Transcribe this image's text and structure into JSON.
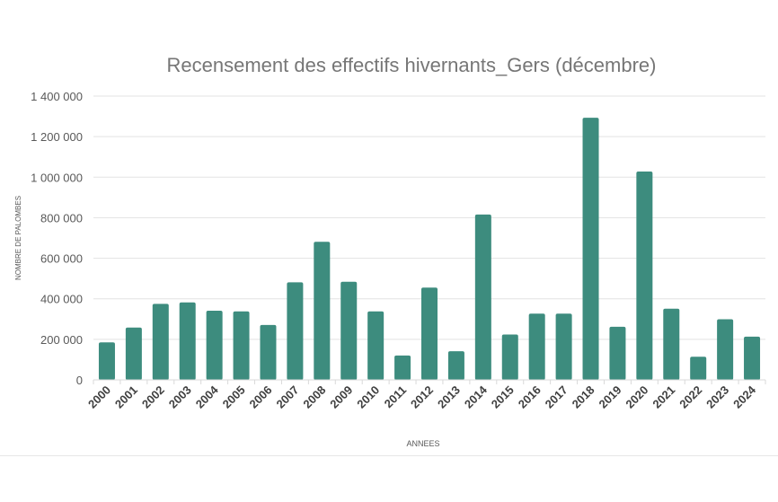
{
  "chart_data": {
    "type": "bar",
    "title": "Recensement des effectifs hivernants_Gers (décembre)",
    "xlabel": "ANNEES",
    "ylabel": "NOMBRE DE PALOMBES",
    "ylim": [
      0,
      1400000
    ],
    "yticks": [
      0,
      200000,
      400000,
      600000,
      800000,
      1000000,
      1200000,
      1400000
    ],
    "ytick_labels": [
      "0",
      "200 000",
      "400 000",
      "600 000",
      "800 000",
      "1 000 000",
      "1 200 000",
      "1 400 000"
    ],
    "grid": true,
    "legend": "none",
    "bar_color": "#3d8c7e",
    "categories": [
      "2000",
      "2001",
      "2002",
      "2003",
      "2004",
      "2005",
      "2006",
      "2007",
      "2008",
      "2009",
      "2010",
      "2011",
      "2012",
      "2013",
      "2014",
      "2015",
      "2016",
      "2017",
      "2018",
      "2019",
      "2020",
      "2021",
      "2022",
      "2023",
      "2024"
    ],
    "values": [
      185000,
      258000,
      375000,
      382000,
      341000,
      338000,
      271000,
      481000,
      681000,
      484000,
      338000,
      120000,
      455000,
      141000,
      816000,
      224000,
      327000,
      327000,
      1293000,
      262000,
      1028000,
      351000,
      114000,
      299000,
      213000
    ]
  }
}
